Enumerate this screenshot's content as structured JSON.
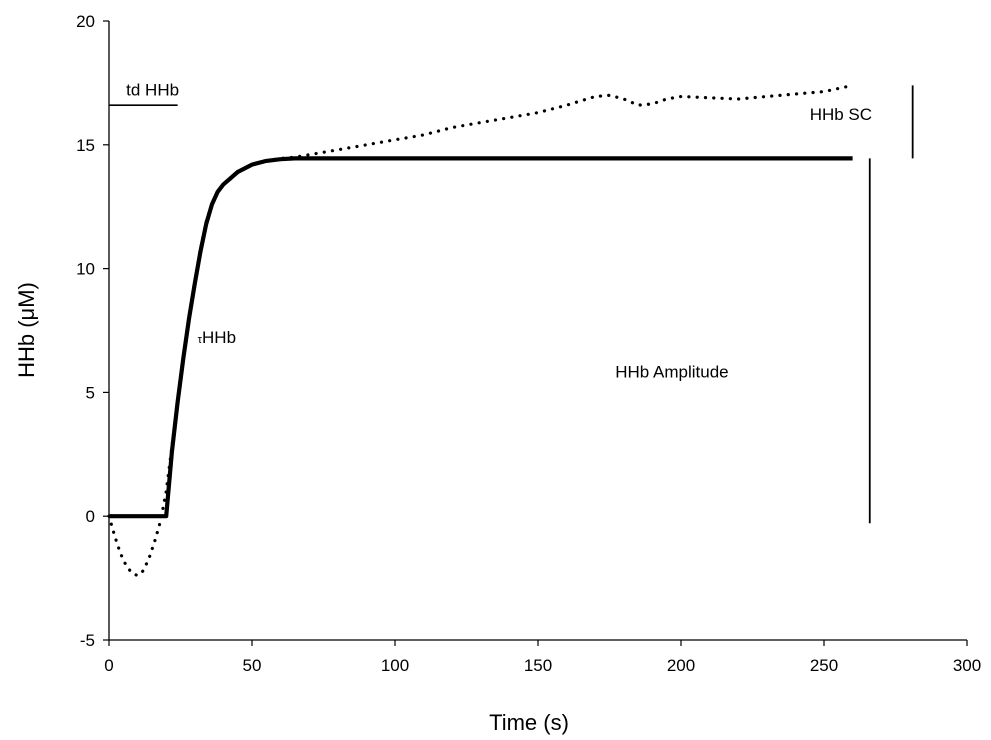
{
  "chart_data": {
    "type": "scatter",
    "title": "",
    "xlabel": "Time (s)",
    "ylabel": "HHb (μM)",
    "xlim": [
      0,
      300
    ],
    "ylim": [
      -5,
      20
    ],
    "x_ticks": [
      0,
      50,
      100,
      150,
      200,
      250,
      300
    ],
    "y_ticks": [
      -5,
      0,
      5,
      10,
      15,
      20
    ],
    "grid": false,
    "legend": "none",
    "series": [
      {
        "style": "dotted",
        "points": [
          [
            0,
            0.0
          ],
          [
            2,
            -0.8
          ],
          [
            4,
            -1.5
          ],
          [
            6,
            -2.0
          ],
          [
            8,
            -2.3
          ],
          [
            10,
            -2.4
          ],
          [
            12,
            -2.2
          ],
          [
            14,
            -1.7
          ],
          [
            16,
            -1.0
          ],
          [
            18,
            -0.2
          ],
          [
            20,
            1.0
          ],
          [
            22,
            2.8
          ],
          [
            24,
            4.6
          ],
          [
            26,
            6.4
          ],
          [
            28,
            8.0
          ],
          [
            30,
            9.5
          ],
          [
            32,
            10.8
          ],
          [
            34,
            11.9
          ],
          [
            36,
            12.6
          ],
          [
            38,
            13.1
          ],
          [
            40,
            13.4
          ],
          [
            45,
            13.9
          ],
          [
            50,
            14.2
          ],
          [
            55,
            14.35
          ],
          [
            60,
            14.45
          ],
          [
            65,
            14.5
          ],
          [
            70,
            14.6
          ],
          [
            80,
            14.8
          ],
          [
            90,
            15.0
          ],
          [
            100,
            15.2
          ],
          [
            110,
            15.4
          ],
          [
            120,
            15.7
          ],
          [
            130,
            15.9
          ],
          [
            140,
            16.1
          ],
          [
            150,
            16.3
          ],
          [
            160,
            16.6
          ],
          [
            170,
            16.95
          ],
          [
            175,
            17.0
          ],
          [
            180,
            16.85
          ],
          [
            185,
            16.6
          ],
          [
            190,
            16.65
          ],
          [
            195,
            16.85
          ],
          [
            200,
            16.95
          ],
          [
            210,
            16.9
          ],
          [
            220,
            16.85
          ],
          [
            230,
            16.95
          ],
          [
            240,
            17.05
          ],
          [
            250,
            17.15
          ],
          [
            260,
            17.4
          ]
        ]
      },
      {
        "style": "solid-thick",
        "points": [
          [
            0,
            0.0
          ],
          [
            20,
            0.0
          ],
          [
            20,
            0.0
          ],
          [
            22,
            2.6
          ],
          [
            24,
            4.6
          ],
          [
            26,
            6.4
          ],
          [
            28,
            8.0
          ],
          [
            30,
            9.4
          ],
          [
            32,
            10.7
          ],
          [
            34,
            11.8
          ],
          [
            36,
            12.6
          ],
          [
            38,
            13.1
          ],
          [
            40,
            13.4
          ],
          [
            45,
            13.9
          ],
          [
            50,
            14.2
          ],
          [
            55,
            14.35
          ],
          [
            60,
            14.42
          ],
          [
            65,
            14.45
          ],
          [
            100,
            14.45
          ],
          [
            150,
            14.45
          ],
          [
            200,
            14.45
          ],
          [
            260,
            14.45
          ]
        ]
      }
    ],
    "annotations": [
      {
        "text": "td HHb",
        "line_x": [
          0,
          24
        ],
        "line_y": 16.6,
        "text_x": 6,
        "text_y": 17.0
      },
      {
        "text": "τHHb",
        "text_x": 31,
        "text_y": 7.0,
        "prefix": "τ",
        "main": "HHb"
      },
      {
        "text": "HHb Amplitude",
        "line_x": 266,
        "line_y": [
          0,
          14.45
        ],
        "text_x": 177,
        "text_y": 5.6
      },
      {
        "text": "HHb SC",
        "line_x": 281,
        "line_y": [
          14.45,
          17.4
        ],
        "text_x": 245,
        "text_y": 16.0
      }
    ]
  }
}
